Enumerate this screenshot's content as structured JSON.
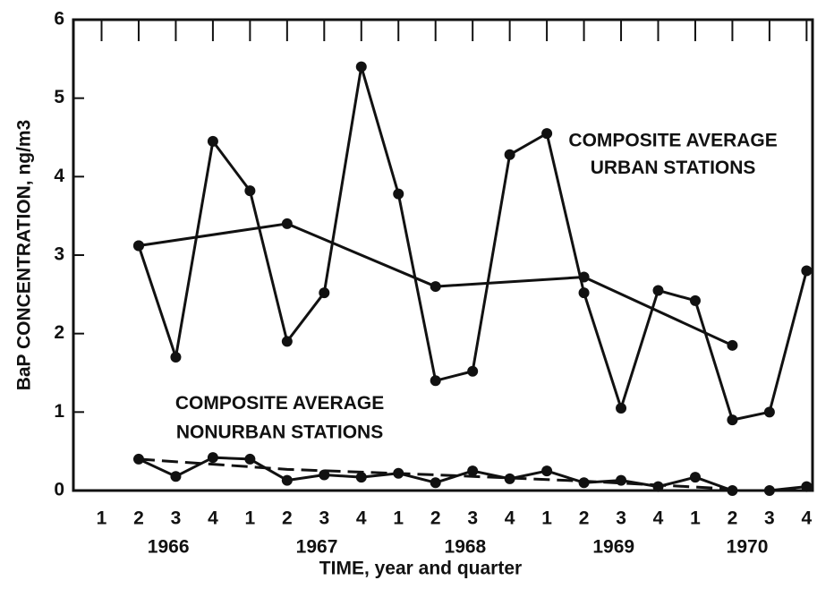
{
  "chart_data": {
    "type": "line",
    "ylabel": "BaP CONCENTRATION, ng/m3",
    "xlabel": "TIME, year and quarter",
    "xlim": [
      1965.81,
      1970.79
    ],
    "ylim": [
      0,
      6
    ],
    "yticks": [
      0,
      1,
      2,
      3,
      4,
      5,
      6
    ],
    "xticks": [
      {
        "value": 1966,
        "label": "1"
      },
      {
        "value": 1966.25,
        "label": "2"
      },
      {
        "value": 1966.5,
        "label": "3"
      },
      {
        "value": 1966.75,
        "label": "4"
      },
      {
        "value": 1967,
        "label": "1"
      },
      {
        "value": 1967.25,
        "label": "2"
      },
      {
        "value": 1967.5,
        "label": "3"
      },
      {
        "value": 1967.75,
        "label": "4"
      },
      {
        "value": 1968,
        "label": "1"
      },
      {
        "value": 1968.25,
        "label": "2"
      },
      {
        "value": 1968.5,
        "label": "3"
      },
      {
        "value": 1968.75,
        "label": "4"
      },
      {
        "value": 1969,
        "label": "1"
      },
      {
        "value": 1969.25,
        "label": "2"
      },
      {
        "value": 1969.5,
        "label": "3"
      },
      {
        "value": 1969.75,
        "label": "4"
      },
      {
        "value": 1970,
        "label": "1"
      },
      {
        "value": 1970.25,
        "label": "2"
      },
      {
        "value": 1970.5,
        "label": "3"
      },
      {
        "value": 1970.75,
        "label": "4"
      }
    ],
    "year_ticks": [
      {
        "value": 1966.45,
        "label": "1966"
      },
      {
        "value": 1967.45,
        "label": "1967"
      },
      {
        "value": 1968.45,
        "label": "1968"
      },
      {
        "value": 1969.45,
        "label": "1969"
      },
      {
        "value": 1970.35,
        "label": "1970"
      }
    ],
    "series": [
      {
        "color": "#111111",
        "marker": true,
        "dash": false,
        "x": [
          1966.25,
          1966.5,
          1966.75,
          1967,
          1967.25,
          1967.5,
          1967.75,
          1968,
          1968.25,
          1968.5,
          1968.75,
          1969,
          1969.25,
          1969.5,
          1969.75,
          1970,
          1970.25,
          1970.5,
          1970.75
        ],
        "values": [
          3.12,
          1.7,
          4.45,
          3.82,
          1.9,
          2.52,
          5.4,
          3.78,
          1.4,
          1.52,
          4.28,
          4.55,
          2.52,
          1.05,
          2.55,
          2.42,
          0.9,
          1.0,
          2.8
        ]
      },
      {
        "color": "#111111",
        "marker": true,
        "dash": false,
        "x": [
          1966.25,
          1967.25,
          1968.25,
          1969.25,
          1970.25
        ],
        "values": [
          3.12,
          3.4,
          2.6,
          2.72,
          1.85
        ]
      },
      {
        "color": "#111111",
        "marker": true,
        "dash": false,
        "x": [
          1966.25,
          1966.5,
          1966.75,
          1967,
          1967.25,
          1967.5,
          1967.75,
          1968,
          1968.25,
          1968.5,
          1968.75,
          1969,
          1969.25,
          1969.5,
          1969.75,
          1970,
          1970.25,
          1970.5,
          1970.75
        ],
        "values": [
          0.4,
          0.18,
          0.42,
          0.4,
          0.13,
          0.2,
          0.17,
          0.22,
          0.1,
          0.25,
          0.15,
          0.25,
          0.1,
          0.13,
          0.05,
          0.17,
          0,
          0,
          0.05
        ]
      },
      {
        "color": "#111111",
        "marker": false,
        "dash": true,
        "x": [
          1966.25,
          1967.25,
          1968.25,
          1969.25,
          1970.25
        ],
        "values": [
          0.4,
          0.27,
          0.2,
          0.12,
          0.02
        ]
      }
    ],
    "annotations": [
      {
        "text": "COMPOSITE AVERAGE",
        "x": 1969.85,
        "y": 4.45
      },
      {
        "text": "URBAN STATIONS",
        "x": 1969.85,
        "y": 4.1
      },
      {
        "text": "COMPOSITE AVERAGE",
        "x": 1967.2,
        "y": 1.1
      },
      {
        "text": "NONURBAN STATIONS",
        "x": 1967.2,
        "y": 0.73
      }
    ]
  }
}
